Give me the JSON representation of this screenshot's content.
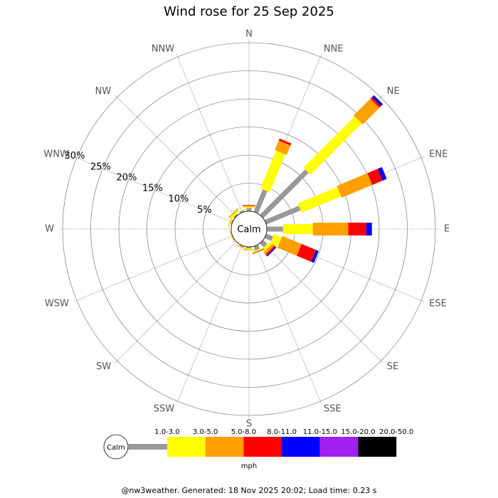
{
  "chart_data": {
    "type": "windrose",
    "title": "Wind rose for 25 Sep 2025",
    "directions": [
      "N",
      "NNE",
      "NE",
      "ENE",
      "E",
      "ESE",
      "SE",
      "SSE",
      "S",
      "SSW",
      "SW",
      "WSW",
      "W",
      "WNW",
      "NW",
      "NNW"
    ],
    "calm_label": "Calm",
    "units": "mph",
    "series": [
      {
        "name": "1.0-3.0",
        "color": "#999999",
        "values": [
          0.6,
          4.3,
          11.4,
          6.6,
          2.9,
          1.3,
          1.0,
          0.8,
          0.3,
          0.2,
          0,
          0,
          0,
          0.2,
          0.3,
          0.3
        ]
      },
      {
        "name": "3.0-5.0",
        "color": "#ffff00",
        "values": [
          0.2,
          7.3,
          12.9,
          7.6,
          5.3,
          1.5,
          0.6,
          0.2,
          0.2,
          0.1,
          0,
          0.1,
          0,
          0.2,
          0.4,
          0.1
        ]
      },
      {
        "name": "5.0-8.0",
        "color": "#ffa000",
        "values": [
          0.2,
          1.8,
          4.2,
          5.9,
          6.3,
          3.7,
          0.5,
          0.1,
          0.1,
          0.1,
          0,
          0.1,
          0,
          0.1,
          0.2,
          0
        ]
      },
      {
        "name": "8.0-11.0",
        "color": "#ff0000",
        "values": [
          0.1,
          0.4,
          0.4,
          2.0,
          3.2,
          2.8,
          0.3,
          0.1,
          0,
          0,
          0,
          0,
          0,
          0,
          0,
          0
        ]
      },
      {
        "name": "11.0-15.0",
        "color": "#0000ff",
        "values": [
          0,
          0,
          0.5,
          0.8,
          1.0,
          0.5,
          0.2,
          0,
          0,
          0,
          0,
          0,
          0,
          0,
          0,
          0
        ]
      },
      {
        "name": "15.0-20.0",
        "color": "#a020f0",
        "values": [
          0,
          0,
          0,
          0,
          0,
          0,
          0,
          0,
          0,
          0,
          0,
          0,
          0,
          0,
          0,
          0
        ]
      },
      {
        "name": "20.0-50.0",
        "color": "#000000",
        "values": [
          0,
          0,
          0,
          0,
          0,
          0,
          0,
          0,
          0,
          0,
          0,
          0,
          0,
          0,
          0,
          0
        ]
      }
    ],
    "rlim": [
      0,
      30
    ],
    "rticks": [
      {
        "value": 5,
        "label": "5%"
      },
      {
        "value": 10,
        "label": "10%"
      },
      {
        "value": 15,
        "label": "15%"
      },
      {
        "value": 20,
        "label": "20%"
      },
      {
        "value": 25,
        "label": "25%"
      },
      {
        "value": 30,
        "label": "30%"
      }
    ],
    "footer": "@nw3weather. Generated: 18 Nov 2025 20:02; Load time: 0.23 s"
  }
}
